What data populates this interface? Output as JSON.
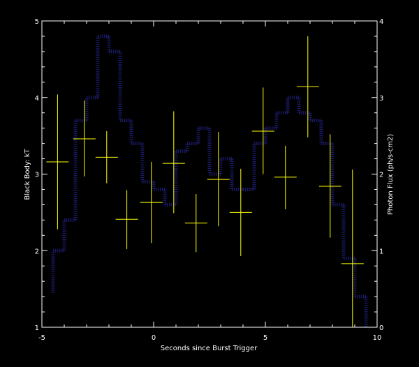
{
  "chart_data": {
    "type": "scatter",
    "title": "",
    "xlabel": "Seconds since Burst Trigger",
    "ylabel_left": "Black Body: kT",
    "ylabel_right": "Photon Flux (ph/s-cm2)",
    "xlim": [
      -5,
      10
    ],
    "ylim_left": [
      1,
      5
    ],
    "ylim_right": [
      0,
      4
    ],
    "x_ticks": [
      -5,
      0,
      5,
      10
    ],
    "x_tick_labels": [
      "-5",
      "0",
      "5",
      "10"
    ],
    "y_left_ticks": [
      1,
      2,
      3,
      4,
      5
    ],
    "y_left_tick_labels": [
      "1",
      "2",
      "3",
      "4",
      "5"
    ],
    "y_right_ticks": [
      0,
      1,
      2,
      3,
      4
    ],
    "y_right_tick_labels": [
      "0",
      "1",
      "2",
      "3",
      "4"
    ],
    "grid": false,
    "colors": {
      "background": "#000000",
      "axes": "#ffffff",
      "kT_points": "#ffff00",
      "flux_histogram": "#1a1a66"
    },
    "series": [
      {
        "axis": "left",
        "style": "crosshair-errorbars",
        "points": [
          {
            "x": -4.3,
            "xerr": 0.5,
            "y": 3.16,
            "ylo": 2.28,
            "yhi": 4.04
          },
          {
            "x": -3.1,
            "xerr": 0.5,
            "y": 3.46,
            "ylo": 2.97,
            "yhi": 3.96
          },
          {
            "x": -2.1,
            "xerr": 0.5,
            "y": 3.22,
            "ylo": 2.88,
            "yhi": 3.56
          },
          {
            "x": -1.2,
            "xerr": 0.5,
            "y": 2.41,
            "ylo": 2.02,
            "yhi": 2.79
          },
          {
            "x": -0.1,
            "xerr": 0.5,
            "y": 2.63,
            "ylo": 2.1,
            "yhi": 3.16
          },
          {
            "x": 0.9,
            "xerr": 0.5,
            "y": 3.14,
            "ylo": 2.49,
            "yhi": 3.82
          },
          {
            "x": 1.9,
            "xerr": 0.5,
            "y": 2.36,
            "ylo": 1.98,
            "yhi": 2.74
          },
          {
            "x": 2.9,
            "xerr": 0.5,
            "y": 2.93,
            "ylo": 2.32,
            "yhi": 3.55
          },
          {
            "x": 3.9,
            "xerr": 0.5,
            "y": 2.5,
            "ylo": 1.93,
            "yhi": 3.07
          },
          {
            "x": 4.9,
            "xerr": 0.5,
            "y": 3.56,
            "ylo": 3.0,
            "yhi": 4.13
          },
          {
            "x": 5.9,
            "xerr": 0.5,
            "y": 2.96,
            "ylo": 2.54,
            "yhi": 3.37
          },
          {
            "x": 6.9,
            "xerr": 0.5,
            "y": 4.14,
            "ylo": 3.48,
            "yhi": 4.8
          },
          {
            "x": 7.9,
            "xerr": 0.5,
            "y": 2.84,
            "ylo": 2.17,
            "yhi": 3.52
          },
          {
            "x": 8.9,
            "xerr": 0.5,
            "y": 1.83,
            "ylo": 1.0,
            "yhi": 3.06
          }
        ]
      },
      {
        "axis": "right",
        "style": "dotted-step-histogram",
        "bins": [
          {
            "x0": -4.5,
            "x1": -4.0,
            "y": 1.0
          },
          {
            "x0": -4.0,
            "x1": -3.5,
            "y": 1.4
          },
          {
            "x0": -3.5,
            "x1": -3.0,
            "y": 2.7
          },
          {
            "x0": -3.0,
            "x1": -2.5,
            "y": 3.0
          },
          {
            "x0": -2.5,
            "x1": -2.0,
            "y": 3.8
          },
          {
            "x0": -2.0,
            "x1": -1.5,
            "y": 3.6
          },
          {
            "x0": -1.5,
            "x1": -1.0,
            "y": 2.7
          },
          {
            "x0": -1.0,
            "x1": -0.5,
            "y": 2.4
          },
          {
            "x0": -0.5,
            "x1": 0.0,
            "y": 1.9
          },
          {
            "x0": 0.0,
            "x1": 0.5,
            "y": 1.8
          },
          {
            "x0": 0.5,
            "x1": 1.0,
            "y": 1.6
          },
          {
            "x0": 1.0,
            "x1": 1.5,
            "y": 2.3
          },
          {
            "x0": 1.5,
            "x1": 2.0,
            "y": 2.4
          },
          {
            "x0": 2.0,
            "x1": 2.5,
            "y": 2.6
          },
          {
            "x0": 2.5,
            "x1": 3.0,
            "y": 2.0
          },
          {
            "x0": 3.0,
            "x1": 3.5,
            "y": 2.2
          },
          {
            "x0": 3.5,
            "x1": 4.0,
            "y": 1.8
          },
          {
            "x0": 4.0,
            "x1": 4.5,
            "y": 1.8
          },
          {
            "x0": 4.5,
            "x1": 5.0,
            "y": 2.4
          },
          {
            "x0": 5.0,
            "x1": 5.5,
            "y": 2.6
          },
          {
            "x0": 5.5,
            "x1": 6.0,
            "y": 2.8
          },
          {
            "x0": 6.0,
            "x1": 6.5,
            "y": 3.0
          },
          {
            "x0": 6.5,
            "x1": 7.0,
            "y": 2.8
          },
          {
            "x0": 7.0,
            "x1": 7.5,
            "y": 2.7
          },
          {
            "x0": 7.5,
            "x1": 8.0,
            "y": 2.4
          },
          {
            "x0": 8.0,
            "x1": 8.5,
            "y": 1.6
          },
          {
            "x0": 8.5,
            "x1": 9.0,
            "y": 0.9
          },
          {
            "x0": 9.0,
            "x1": 9.5,
            "y": 0.4
          }
        ]
      }
    ]
  }
}
